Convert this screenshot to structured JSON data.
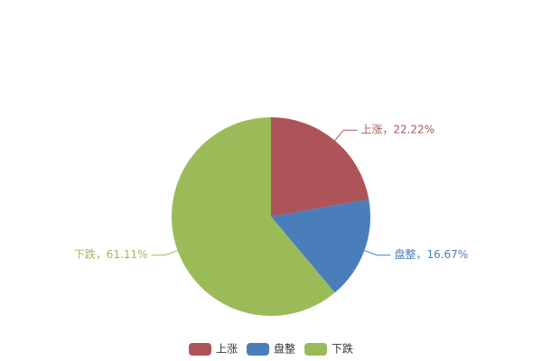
{
  "chart_data": {
    "type": "pie",
    "categories": [
      "上涨",
      "盘整",
      "下跌"
    ],
    "values": [
      22.22,
      16.67,
      61.11
    ],
    "value_labels": [
      "上涨，22.22%",
      "盘整，16.67%",
      "下跌，61.11%"
    ],
    "colors": [
      "#ae5458",
      "#4a7ebb",
      "#9bbb59"
    ],
    "legend": "bottom"
  }
}
